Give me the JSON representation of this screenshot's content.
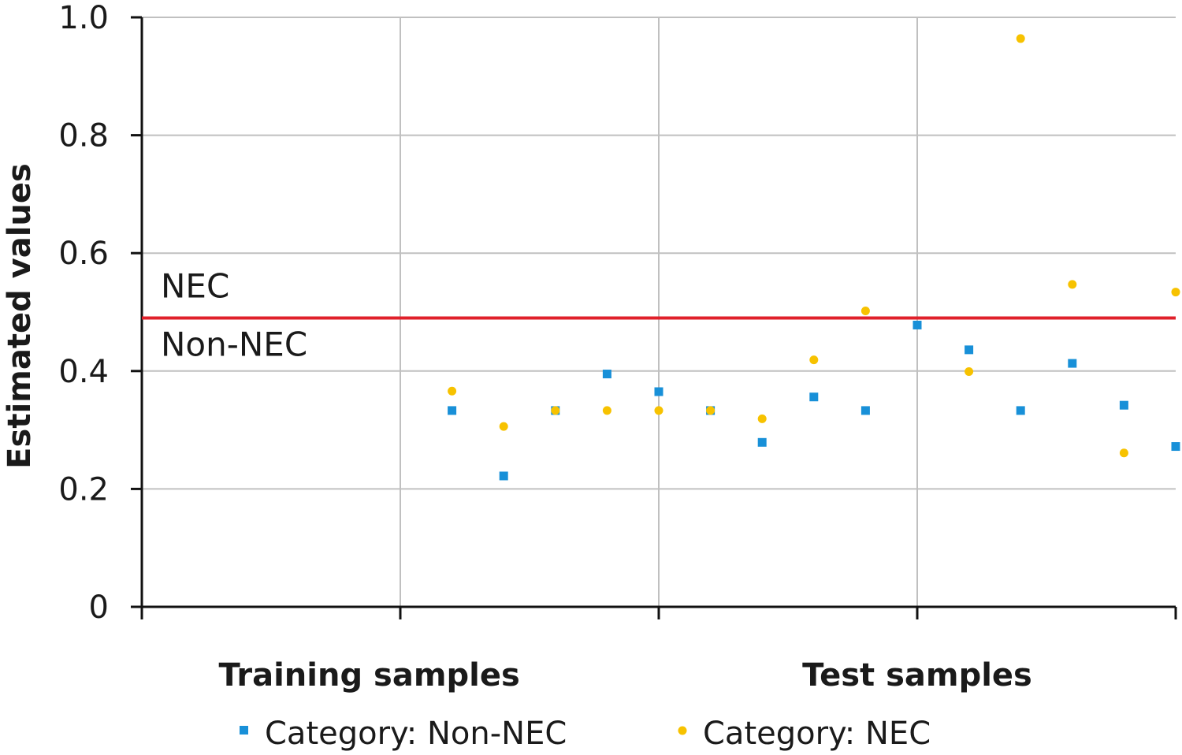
{
  "chart_data": {
    "type": "scatter",
    "ylabel": "Estimated values",
    "ylim": [
      0,
      1.0
    ],
    "y_ticks": [
      {
        "value": 0,
        "label": "0"
      },
      {
        "value": 0.2,
        "label": "0.2"
      },
      {
        "value": 0.4,
        "label": "0.4"
      },
      {
        "value": 0.6,
        "label": "0.6"
      },
      {
        "value": 0.8,
        "label": "0.8"
      },
      {
        "value": 1.0,
        "label": "1.0"
      }
    ],
    "xlim": [
      0,
      20
    ],
    "x_gridlines": [
      5,
      10,
      15
    ],
    "x_group_labels": [
      {
        "label": "Training samples",
        "center": 4.4
      },
      {
        "label": "Test samples",
        "center": 15.0
      }
    ],
    "grid": true,
    "threshold": {
      "value": 0.49,
      "color": "#e0202a",
      "above_label": "NEC",
      "below_label": "Non-NEC"
    },
    "legend_position": "bottom",
    "series": [
      {
        "name": "Category: Non-NEC",
        "marker": "square",
        "color": "#1890d8",
        "x": [
          6,
          7,
          8,
          9,
          10,
          11,
          12,
          13,
          14,
          15,
          16,
          17,
          18,
          19,
          20
        ],
        "y": [
          0.333,
          0.222,
          0.333,
          0.395,
          0.365,
          0.333,
          0.279,
          0.356,
          0.333,
          0.478,
          0.436,
          0.333,
          0.413,
          0.342,
          0.272
        ]
      },
      {
        "name": "Category: NEC",
        "marker": "circle",
        "color": "#f7c200",
        "x": [
          6,
          7,
          8,
          9,
          10,
          11,
          12,
          13,
          14,
          17,
          16,
          18,
          19,
          20
        ],
        "y": [
          0.366,
          0.306,
          0.333,
          0.333,
          0.333,
          0.333,
          0.319,
          0.419,
          0.502,
          0.964,
          0.399,
          0.547,
          0.261,
          0.534
        ]
      }
    ]
  }
}
